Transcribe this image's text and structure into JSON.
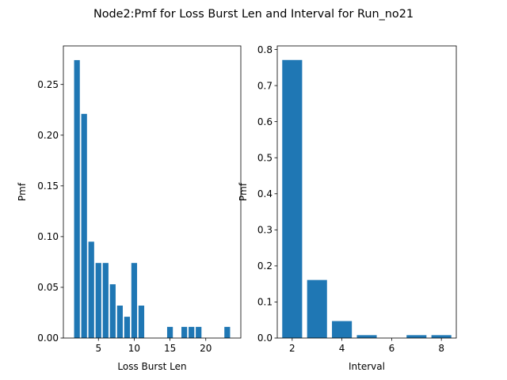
{
  "figure": {
    "suptitle": "Node2:Pmf for Loss Burst Len and Interval for Run_no21",
    "bar_color": "#1f77b4"
  },
  "chart_data": [
    {
      "type": "bar",
      "xlabel": "Loss Burst Len",
      "ylabel": "Pmf",
      "xlim": [
        0.1,
        24.9
      ],
      "ylim": [
        0,
        0.288
      ],
      "xticks": [
        5,
        10,
        15,
        20
      ],
      "yticks": [
        0.0,
        0.05,
        0.1,
        0.15,
        0.2,
        0.25
      ],
      "ytick_labels": [
        "0.00",
        "0.05",
        "0.10",
        "0.15",
        "0.20",
        "0.25"
      ],
      "bar_width": 0.8,
      "x": [
        2,
        3,
        4,
        5,
        6,
        7,
        8,
        9,
        10,
        11,
        15,
        17,
        18,
        19,
        23
      ],
      "values": [
        0.274,
        0.221,
        0.095,
        0.074,
        0.074,
        0.053,
        0.032,
        0.021,
        0.074,
        0.032,
        0.011,
        0.011,
        0.011,
        0.011,
        0.011
      ]
    },
    {
      "type": "bar",
      "xlabel": "Interval",
      "ylabel": "Pmf",
      "xlim": [
        1.4,
        8.6
      ],
      "ylim": [
        0,
        0.81
      ],
      "xticks": [
        2,
        4,
        6,
        8
      ],
      "yticks": [
        0.0,
        0.1,
        0.2,
        0.3,
        0.4,
        0.5,
        0.6,
        0.7,
        0.8
      ],
      "ytick_labels": [
        "0.0",
        "0.1",
        "0.2",
        "0.3",
        "0.4",
        "0.5",
        "0.6",
        "0.7",
        "0.8"
      ],
      "bar_width": 0.8,
      "x": [
        2,
        3,
        4,
        5,
        7,
        8
      ],
      "values": [
        0.771,
        0.161,
        0.047,
        0.008,
        0.008,
        0.008
      ]
    }
  ]
}
